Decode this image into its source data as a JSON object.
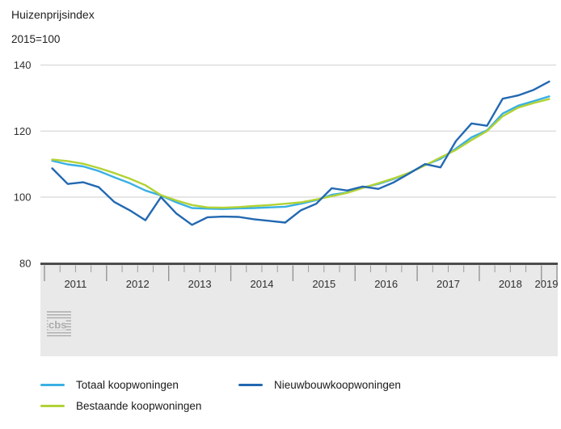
{
  "title": "Huizenprijsindex",
  "subtitle": "2015=100",
  "logo_text": "cbs",
  "colors": {
    "totaal": "#39b0e3",
    "bestaande": "#b2d235",
    "nieuwbouw": "#2368b1",
    "gridline": "#d8d8d8",
    "band_fill": "#e9e9e9",
    "band_border": "#4c4c4e",
    "tick": "#8f8f8f",
    "axis_text": "#2f2f2f",
    "logo": "#ababab"
  },
  "legend": [
    {
      "label": "Totaal koopwoningen",
      "series": "totaal"
    },
    {
      "label": "Bestaande koopwoningen",
      "series": "bestaande"
    },
    {
      "label": "Nieuwbouwkoopwoningen",
      "series": "nieuwbouw"
    }
  ],
  "chart_data": {
    "type": "line",
    "title": "Huizenprijsindex",
    "subtitle": "2015=100",
    "grid": "horizontal",
    "legend_position": "bottom",
    "ylim": [
      80,
      140
    ],
    "yticks": [
      80,
      100,
      120,
      140
    ],
    "ytick_labels": [
      "80",
      "100",
      "120",
      "140"
    ],
    "x_tick_labels": [
      "2011",
      "2012",
      "2013",
      "2014",
      "2015",
      "2016",
      "2017",
      "2018",
      "2019"
    ],
    "x": [
      "2011Q1",
      "2011Q2",
      "2011Q3",
      "2011Q4",
      "2012Q1",
      "2012Q2",
      "2012Q3",
      "2012Q4",
      "2013Q1",
      "2013Q2",
      "2013Q3",
      "2013Q4",
      "2014Q1",
      "2014Q2",
      "2014Q3",
      "2014Q4",
      "2015Q1",
      "2015Q2",
      "2015Q3",
      "2015Q4",
      "2016Q1",
      "2016Q2",
      "2016Q3",
      "2016Q4",
      "2017Q1",
      "2017Q2",
      "2017Q3",
      "2017Q4",
      "2018Q1",
      "2018Q2",
      "2018Q3",
      "2018Q4",
      "2019Q1"
    ],
    "series": [
      {
        "name": "Totaal koopwoningen",
        "key": "totaal",
        "values": [
          111.0,
          109.9,
          109.3,
          107.9,
          106.0,
          104.2,
          102.0,
          100.5,
          98.4,
          96.7,
          96.5,
          96.4,
          96.6,
          96.7,
          96.9,
          97.1,
          98.0,
          99.1,
          100.7,
          101.4,
          102.9,
          104.0,
          105.5,
          107.4,
          109.7,
          111.6,
          114.7,
          118.1,
          120.2,
          125.3,
          127.7,
          129.1,
          130.5
        ]
      },
      {
        "name": "Bestaande koopwoningen",
        "key": "bestaande",
        "values": [
          111.4,
          110.9,
          110.1,
          108.8,
          107.3,
          105.6,
          103.6,
          100.6,
          99.0,
          97.6,
          96.9,
          96.8,
          97.0,
          97.3,
          97.6,
          98.0,
          98.4,
          99.3,
          100.3,
          101.3,
          102.8,
          104.2,
          105.7,
          107.4,
          109.6,
          112.0,
          114.3,
          117.3,
          120.0,
          124.5,
          127.1,
          128.5,
          129.7
        ]
      },
      {
        "name": "Nieuwbouwkoopwoningen",
        "key": "nieuwbouw",
        "values": [
          108.7,
          104.0,
          104.5,
          103.0,
          98.5,
          96.0,
          93.0,
          100.0,
          95.0,
          91.6,
          93.9,
          94.1,
          94.0,
          93.3,
          92.8,
          92.3,
          96.0,
          98.0,
          102.7,
          102.0,
          103.2,
          102.5,
          104.5,
          107.2,
          110.0,
          109.0,
          117.0,
          122.3,
          121.6,
          129.8,
          130.8,
          132.5,
          135.0
        ]
      }
    ]
  }
}
